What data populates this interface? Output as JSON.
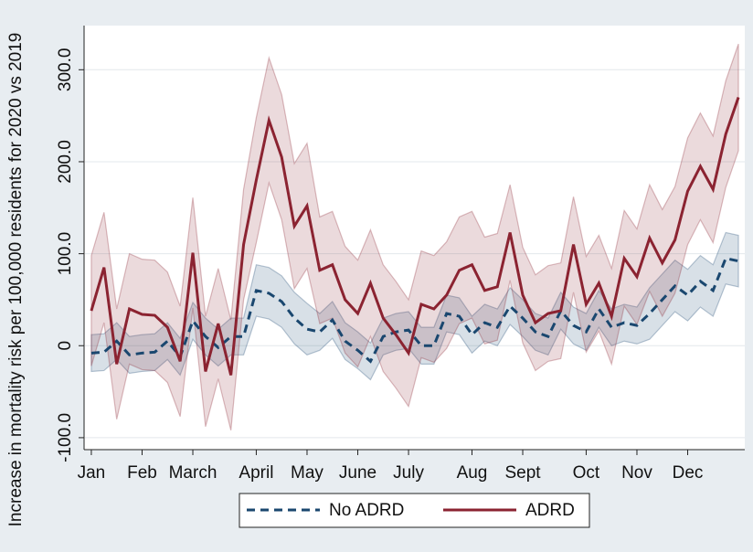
{
  "chart_data": {
    "type": "line",
    "y_label": "Increase in mortality risk per 100,000 residents for 2020 vs 2019",
    "x": [
      1,
      2,
      3,
      4,
      5,
      6,
      7,
      8,
      9,
      10,
      11,
      12,
      13,
      14,
      15,
      16,
      17,
      18,
      19,
      20,
      21,
      22,
      23,
      24,
      25,
      26,
      27,
      28,
      29,
      30,
      31,
      32,
      33,
      34,
      35,
      36,
      37,
      38,
      39,
      40,
      41,
      42,
      43,
      44,
      45,
      46,
      47,
      48,
      49,
      50,
      51,
      52
    ],
    "xlim": [
      0.5,
      52.5
    ],
    "xticks": [
      {
        "value": 1,
        "label": "Jan"
      },
      {
        "value": 5,
        "label": "Feb"
      },
      {
        "value": 9,
        "label": "March"
      },
      {
        "value": 14,
        "label": "April"
      },
      {
        "value": 18,
        "label": "May"
      },
      {
        "value": 22,
        "label": "June"
      },
      {
        "value": 26,
        "label": "July"
      },
      {
        "value": 31,
        "label": "Aug"
      },
      {
        "value": 35,
        "label": "Sept"
      },
      {
        "value": 40,
        "label": "Oct"
      },
      {
        "value": 44,
        "label": "Nov"
      },
      {
        "value": 48,
        "label": "Dec"
      }
    ],
    "ylim": [
      -113,
      348
    ],
    "yticks": [
      {
        "value": -100,
        "label": "-100.0"
      },
      0,
      {
        "value": 100,
        "label": "100.0"
      },
      {
        "value": 200,
        "label": "200.0"
      },
      {
        "value": 300,
        "label": "300.0"
      }
    ],
    "grid": true,
    "legend": "bottom",
    "series": [
      {
        "name": "No ADRD",
        "color": "#1a476f",
        "dash": true,
        "values": [
          -8,
          -7,
          5,
          -10,
          -8,
          -7,
          5,
          -12,
          27,
          10,
          -2,
          10,
          10,
          60,
          57,
          48,
          30,
          18,
          15,
          28,
          5,
          -5,
          -17,
          10,
          15,
          17,
          0,
          0,
          35,
          32,
          12,
          25,
          20,
          43,
          30,
          15,
          10,
          38,
          22,
          15,
          40,
          20,
          25,
          22,
          35,
          50,
          65,
          55,
          70,
          60,
          95,
          92
        ],
        "upper": [
          12,
          13,
          25,
          10,
          12,
          13,
          25,
          8,
          47,
          30,
          18,
          30,
          30,
          88,
          85,
          76,
          58,
          46,
          35,
          48,
          25,
          15,
          3,
          30,
          35,
          37,
          20,
          20,
          55,
          52,
          32,
          45,
          40,
          63,
          50,
          35,
          30,
          58,
          42,
          35,
          60,
          40,
          45,
          42,
          63,
          78,
          93,
          83,
          98,
          88,
          123,
          120
        ],
        "lower": [
          -28,
          -27,
          -15,
          -30,
          -28,
          -27,
          -15,
          -32,
          7,
          -10,
          -22,
          -10,
          -10,
          32,
          29,
          20,
          2,
          -10,
          -5,
          8,
          -15,
          -25,
          -37,
          -10,
          -5,
          -3,
          -20,
          -20,
          15,
          12,
          -8,
          5,
          0,
          23,
          10,
          -5,
          -10,
          18,
          2,
          -5,
          20,
          0,
          5,
          2,
          7,
          22,
          37,
          27,
          42,
          32,
          67,
          64
        ]
      },
      {
        "name": "ADRD",
        "color": "#8b2331",
        "dash": false,
        "values": [
          38,
          85,
          -20,
          40,
          34,
          33,
          20,
          -17,
          101,
          -28,
          24,
          -32,
          110,
          180,
          245,
          205,
          130,
          152,
          82,
          88,
          50,
          35,
          68,
          30,
          12,
          -8,
          45,
          40,
          55,
          82,
          88,
          60,
          64,
          123,
          55,
          25,
          35,
          38,
          110,
          45,
          68,
          32,
          95,
          75,
          117,
          90,
          115,
          168,
          195,
          170,
          230,
          270
        ],
        "upper": [
          98,
          145,
          40,
          100,
          94,
          93,
          80,
          43,
          161,
          32,
          84,
          28,
          170,
          248,
          313,
          273,
          198,
          220,
          140,
          146,
          108,
          93,
          126,
          88,
          70,
          50,
          103,
          98,
          113,
          140,
          146,
          118,
          122,
          175,
          107,
          77,
          87,
          90,
          162,
          97,
          120,
          84,
          147,
          127,
          175,
          148,
          173,
          226,
          253,
          228,
          288,
          328
        ],
        "lower": [
          -22,
          25,
          -80,
          -20,
          -26,
          -27,
          -40,
          -77,
          41,
          -88,
          -36,
          -92,
          50,
          112,
          177,
          137,
          62,
          84,
          24,
          30,
          -8,
          -23,
          10,
          -28,
          -46,
          -66,
          -13,
          -18,
          -3,
          24,
          30,
          2,
          6,
          71,
          3,
          -27,
          -17,
          -14,
          58,
          -7,
          16,
          -20,
          43,
          23,
          59,
          32,
          57,
          110,
          137,
          112,
          172,
          212
        ]
      }
    ]
  }
}
